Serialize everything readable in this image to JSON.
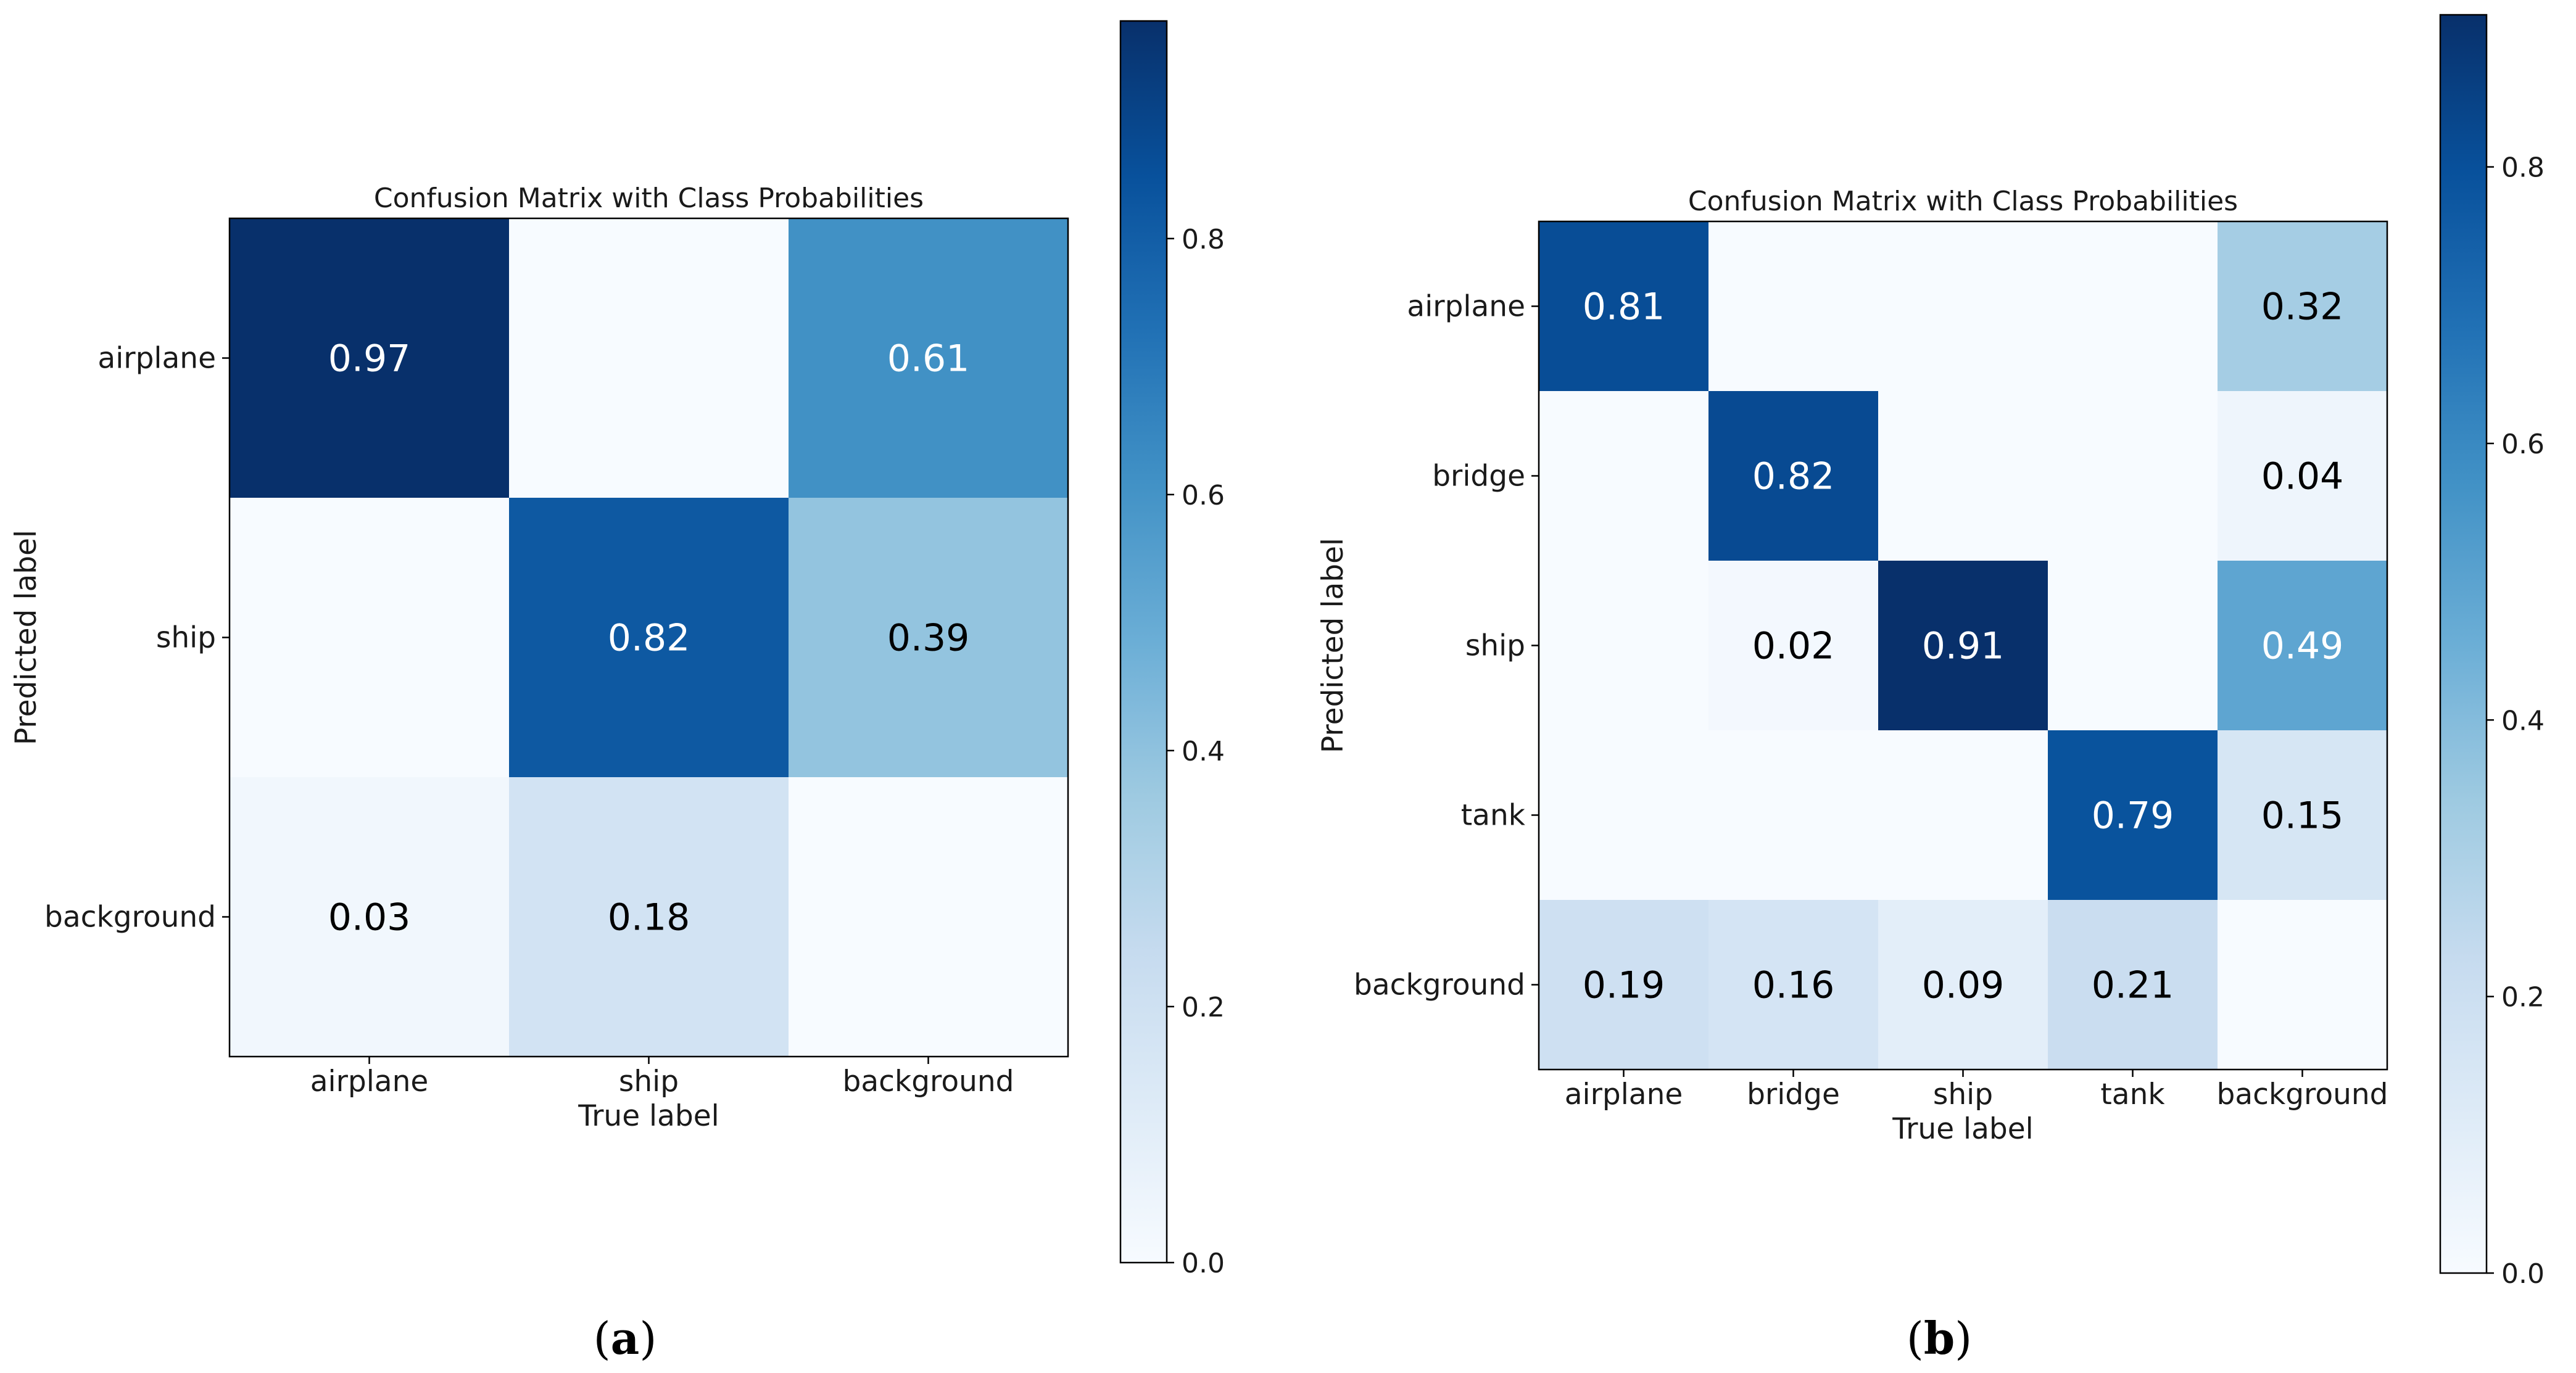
{
  "colormap": {
    "name": "Blues",
    "stops": [
      "#f7fbff",
      "#deebf7",
      "#c6dbef",
      "#9ecae1",
      "#6baed6",
      "#4292c6",
      "#2171b5",
      "#08519c",
      "#08306b"
    ]
  },
  "chart_data": [
    {
      "type": "heatmap",
      "title": "Confusion Matrix with Class Probabilities",
      "xlabel": "True label",
      "ylabel": "Predicted label",
      "x_categories": [
        "airplane",
        "ship",
        "background"
      ],
      "y_categories": [
        "airplane",
        "ship",
        "background"
      ],
      "values": [
        [
          0.97,
          0.0,
          0.61
        ],
        [
          0.0,
          0.82,
          0.39
        ],
        [
          0.03,
          0.18,
          0.0
        ]
      ],
      "value_labels": [
        [
          "0.97",
          "",
          "0.61"
        ],
        [
          "",
          "0.82",
          "0.39"
        ],
        [
          "0.03",
          "0.18",
          ""
        ]
      ],
      "colorbar": {
        "range": [
          0.0,
          0.97
        ],
        "ticks": [
          0.0,
          0.2,
          0.4,
          0.6,
          0.8
        ],
        "tick_labels": [
          "0.0",
          "0.2",
          "0.4",
          "0.6",
          "0.8"
        ]
      },
      "caption_letter": "a"
    },
    {
      "type": "heatmap",
      "title": "Confusion Matrix with Class Probabilities",
      "xlabel": "True label",
      "ylabel": "Predicted label",
      "x_categories": [
        "airplane",
        "bridge",
        "ship",
        "tank",
        "background"
      ],
      "y_categories": [
        "airplane",
        "bridge",
        "ship",
        "tank",
        "background"
      ],
      "values": [
        [
          0.81,
          0.0,
          0.0,
          0.0,
          0.32
        ],
        [
          0.0,
          0.82,
          0.0,
          0.0,
          0.04
        ],
        [
          0.0,
          0.02,
          0.91,
          0.0,
          0.49
        ],
        [
          0.0,
          0.0,
          0.0,
          0.79,
          0.15
        ],
        [
          0.19,
          0.16,
          0.09,
          0.21,
          0.0
        ]
      ],
      "value_labels": [
        [
          "0.81",
          "",
          "",
          "",
          "0.32"
        ],
        [
          "",
          "0.82",
          "",
          "",
          "0.04"
        ],
        [
          "",
          "0.02",
          "0.91",
          "",
          "0.49"
        ],
        [
          "",
          "",
          "",
          "0.79",
          "0.15"
        ],
        [
          "0.19",
          "0.16",
          "0.09",
          "0.21",
          ""
        ]
      ],
      "colorbar": {
        "range": [
          0.0,
          0.91
        ],
        "ticks": [
          0.0,
          0.2,
          0.4,
          0.6,
          0.8
        ],
        "tick_labels": [
          "0.0",
          "0.2",
          "0.4",
          "0.6",
          "0.8"
        ]
      },
      "caption_letter": "b"
    }
  ]
}
